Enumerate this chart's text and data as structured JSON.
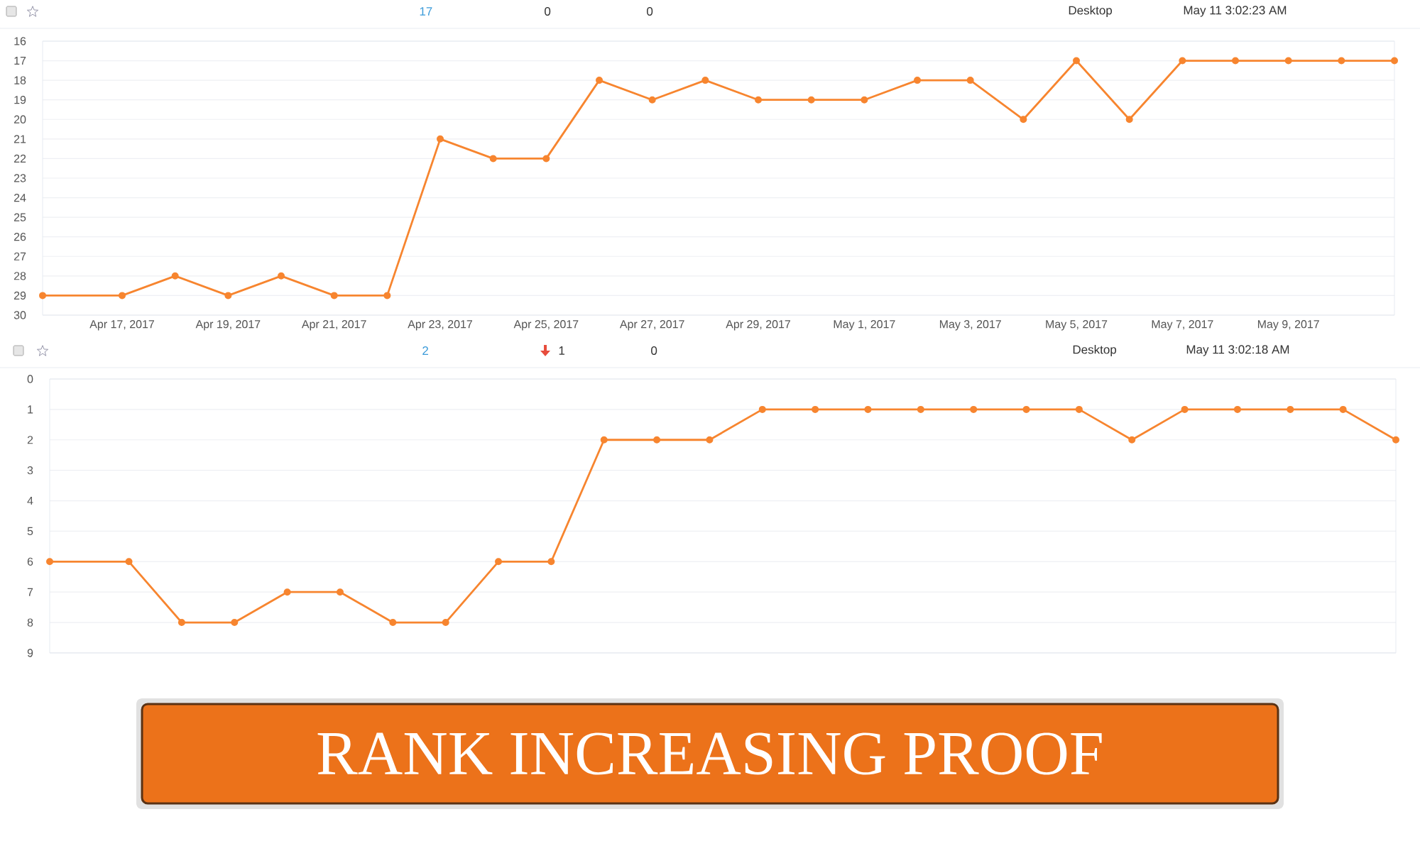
{
  "chart_data": [
    {
      "type": "line",
      "x": [
        "2017-04-15T12:00",
        "2017-04-17",
        "2017-04-18",
        "2017-04-19",
        "2017-04-20",
        "2017-04-21",
        "2017-04-22",
        "2017-04-23",
        "2017-04-24",
        "2017-04-25",
        "2017-04-26",
        "2017-04-27",
        "2017-04-28",
        "2017-04-29",
        "2017-04-30",
        "2017-05-01",
        "2017-05-02",
        "2017-05-03",
        "2017-05-04",
        "2017-05-05",
        "2017-05-06",
        "2017-05-07",
        "2017-05-08",
        "2017-05-09",
        "2017-05-10",
        "2017-05-11"
      ],
      "series": [
        {
          "color": "#f7852f",
          "values": [
            29,
            29,
            28,
            29,
            28,
            29,
            29,
            21,
            22,
            22,
            18,
            19,
            18,
            19,
            19,
            19,
            18,
            18,
            20,
            17,
            20,
            17,
            17,
            17,
            17,
            17
          ]
        }
      ],
      "xlim": [
        "2017-04-15T12:00",
        "2017-05-11"
      ],
      "xticks": [
        {
          "value": "2017-04-17",
          "label": "Apr 17, 2017"
        },
        {
          "value": "2017-04-19",
          "label": "Apr 19, 2017"
        },
        {
          "value": "2017-04-21",
          "label": "Apr 21, 2017"
        },
        {
          "value": "2017-04-23",
          "label": "Apr 23, 2017"
        },
        {
          "value": "2017-04-25",
          "label": "Apr 25, 2017"
        },
        {
          "value": "2017-04-27",
          "label": "Apr 27, 2017"
        },
        {
          "value": "2017-04-29",
          "label": "Apr 29, 2017"
        },
        {
          "value": "2017-05-01",
          "label": "May 1, 2017"
        },
        {
          "value": "2017-05-03",
          "label": "May 3, 2017"
        },
        {
          "value": "2017-05-05",
          "label": "May 5, 2017"
        },
        {
          "value": "2017-05-07",
          "label": "May 7, 2017"
        },
        {
          "value": "2017-05-09",
          "label": "May 9, 2017"
        }
      ],
      "ylim": [
        30,
        16
      ],
      "yticks": [
        16,
        17,
        18,
        19,
        20,
        21,
        22,
        23,
        24,
        25,
        26,
        27,
        28,
        29,
        30
      ],
      "grid": "y",
      "marker": "circle",
      "line_style": "solid",
      "annotations": [
        "17",
        "0",
        "0",
        "Desktop",
        "May 11 3:02:23 AM"
      ]
    },
    {
      "type": "line",
      "x": [
        "2017-04-15T12:00",
        "2017-04-17",
        "2017-04-18",
        "2017-04-19",
        "2017-04-20",
        "2017-04-21",
        "2017-04-22",
        "2017-04-23",
        "2017-04-24",
        "2017-04-25",
        "2017-04-26",
        "2017-04-27",
        "2017-04-28",
        "2017-04-29",
        "2017-04-30",
        "2017-05-01",
        "2017-05-02",
        "2017-05-03",
        "2017-05-04",
        "2017-05-05",
        "2017-05-06",
        "2017-05-07",
        "2017-05-08",
        "2017-05-09",
        "2017-05-10",
        "2017-05-11"
      ],
      "series": [
        {
          "color": "#f7852f",
          "values": [
            6,
            6,
            8,
            8,
            7,
            7,
            8,
            8,
            6,
            6,
            2,
            2,
            2,
            1,
            1,
            1,
            1,
            1,
            1,
            1,
            2,
            1,
            1,
            1,
            1,
            2
          ]
        }
      ],
      "xlim": [
        "2017-04-15T12:00",
        "2017-05-11"
      ],
      "ylim": [
        9,
        0
      ],
      "yticks": [
        0,
        1,
        2,
        3,
        4,
        5,
        6,
        7,
        8,
        9
      ],
      "grid": "y",
      "marker": "circle",
      "line_style": "solid",
      "tick_labels": "y",
      "title": "RANK INCREASING PROOF",
      "annotations": [
        "2",
        "1",
        "0",
        "Desktop",
        "May 11 3:02:18 AM"
      ]
    }
  ]
}
